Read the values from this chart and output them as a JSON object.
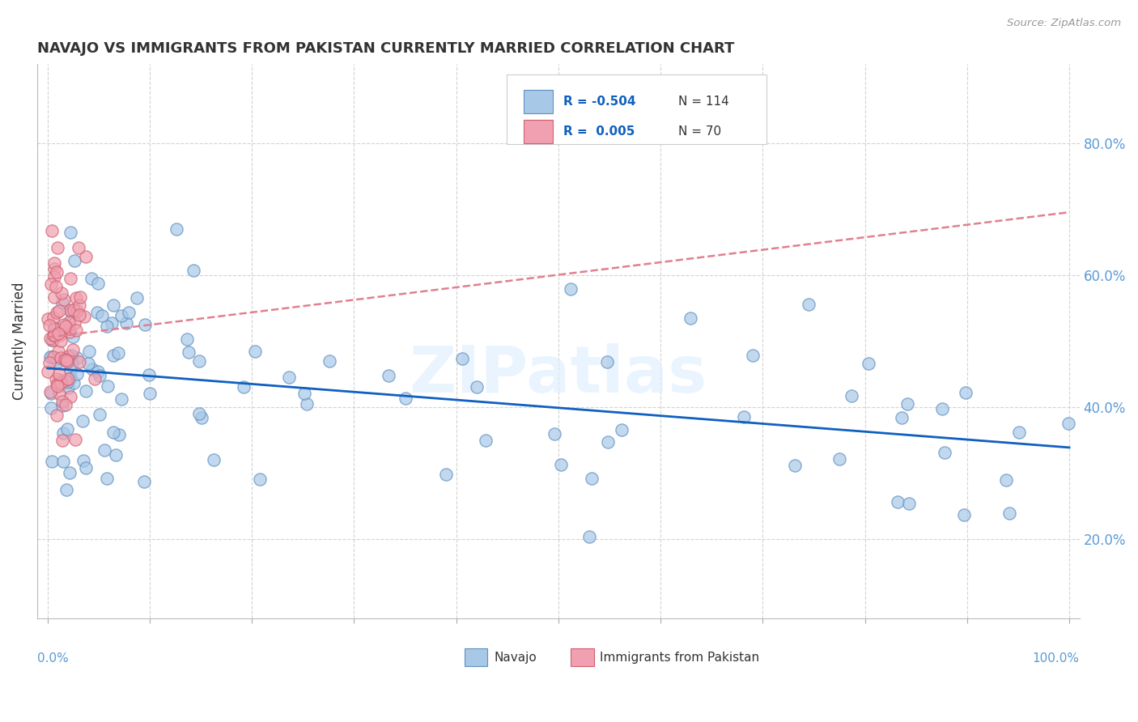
{
  "title": "NAVAJO VS IMMIGRANTS FROM PAKISTAN CURRENTLY MARRIED CORRELATION CHART",
  "source": "Source: ZipAtlas.com",
  "ylabel": "Currently Married",
  "right_yticklabels": [
    "20.0%",
    "40.0%",
    "60.0%",
    "80.0%"
  ],
  "right_ytick_vals": [
    0.2,
    0.4,
    0.6,
    0.8
  ],
  "legend_entries": [
    {
      "label": "Navajo",
      "R": "-0.504",
      "N": "114"
    },
    {
      "label": "Immigrants from Pakistan",
      "R": "0.005",
      "N": "70"
    }
  ],
  "navajo_fill": "#a8c8e8",
  "navajo_edge": "#6090c0",
  "pakistan_fill": "#f0a0b0",
  "pakistan_edge": "#d06070",
  "trend_blue": "#1060c0",
  "trend_pink": "#e08090",
  "watermark": "ZIPatlas",
  "bg_color": "#ffffff",
  "grid_color": "#c8c8c8",
  "ylim": [
    0.08,
    0.92
  ],
  "xlim": [
    -0.01,
    1.01
  ],
  "navajo_R": -0.504,
  "navajo_N": 114,
  "pakistan_R": 0.005,
  "pakistan_N": 70,
  "nav_trend_start_x": 0.0,
  "nav_trend_start_y": 0.475,
  "nav_trend_end_x": 1.0,
  "nav_trend_end_y": 0.345,
  "pak_trend_y": 0.515
}
